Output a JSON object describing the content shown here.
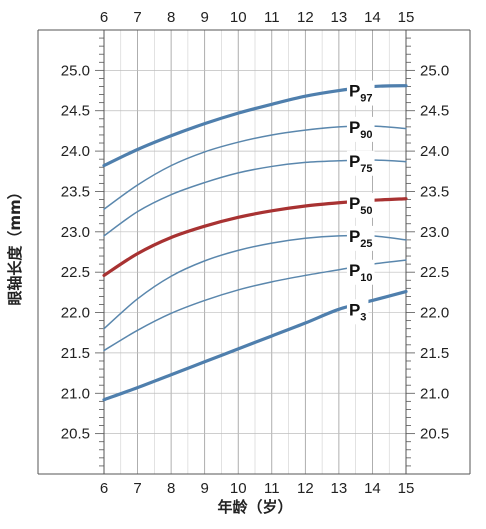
{
  "chart_data": {
    "type": "line",
    "xlabel": "年龄（岁）",
    "ylabel": "眼轴长度（mm）",
    "xlim": [
      6,
      15
    ],
    "ylim": [
      20.0,
      25.5
    ],
    "x_ticks": [
      6,
      7,
      8,
      9,
      10,
      11,
      12,
      13,
      14,
      15
    ],
    "x_tick_labels": [
      "6",
      "7",
      "8",
      "9",
      "10",
      "11",
      "12",
      "13",
      "14",
      "15"
    ],
    "y_ticks": [
      20.5,
      21.0,
      21.5,
      22.0,
      22.5,
      23.0,
      23.5,
      24.0,
      24.5,
      25.0
    ],
    "y_tick_labels": [
      "20.5",
      "21.0",
      "21.5",
      "22.0",
      "22.5",
      "23.0",
      "23.5",
      "24.0",
      "24.5",
      "25.0"
    ],
    "grid": true,
    "x": [
      6,
      7,
      8,
      9,
      10,
      11,
      12,
      13,
      14,
      15
    ],
    "series": [
      {
        "name": "P97",
        "label_main": "P",
        "label_sub": "97",
        "color": "#4f7fad",
        "emphasis": "thick",
        "values": [
          23.82,
          24.02,
          24.19,
          24.34,
          24.47,
          24.58,
          24.68,
          24.75,
          24.8,
          24.81
        ]
      },
      {
        "name": "P90",
        "label_main": "P",
        "label_sub": "90",
        "color": "#5a87ad",
        "emphasis": "thin",
        "values": [
          23.28,
          23.58,
          23.82,
          23.99,
          24.11,
          24.2,
          24.26,
          24.3,
          24.31,
          24.28
        ]
      },
      {
        "name": "P75",
        "label_main": "P",
        "label_sub": "75",
        "color": "#5a87ad",
        "emphasis": "thin",
        "values": [
          22.95,
          23.25,
          23.46,
          23.61,
          23.73,
          23.81,
          23.86,
          23.88,
          23.89,
          23.87
        ]
      },
      {
        "name": "P50",
        "label_main": "P",
        "label_sub": "50",
        "color": "#a83232",
        "emphasis": "thick",
        "values": [
          22.46,
          22.73,
          22.93,
          23.07,
          23.18,
          23.26,
          23.32,
          23.36,
          23.39,
          23.41
        ]
      },
      {
        "name": "P25",
        "label_main": "P",
        "label_sub": "25",
        "color": "#5a87ad",
        "emphasis": "thin",
        "values": [
          21.8,
          22.17,
          22.45,
          22.64,
          22.77,
          22.86,
          22.92,
          22.95,
          22.95,
          22.9
        ]
      },
      {
        "name": "P10",
        "label_main": "P",
        "label_sub": "10",
        "color": "#5a87ad",
        "emphasis": "thin",
        "values": [
          21.53,
          21.78,
          21.99,
          22.15,
          22.28,
          22.38,
          22.46,
          22.53,
          22.6,
          22.65
        ]
      },
      {
        "name": "P3",
        "label_main": "P",
        "label_sub": "3",
        "color": "#4f7fad",
        "emphasis": "thick",
        "values": [
          20.92,
          21.07,
          21.23,
          21.39,
          21.55,
          21.71,
          21.87,
          22.04,
          22.15,
          22.26
        ]
      }
    ]
  }
}
